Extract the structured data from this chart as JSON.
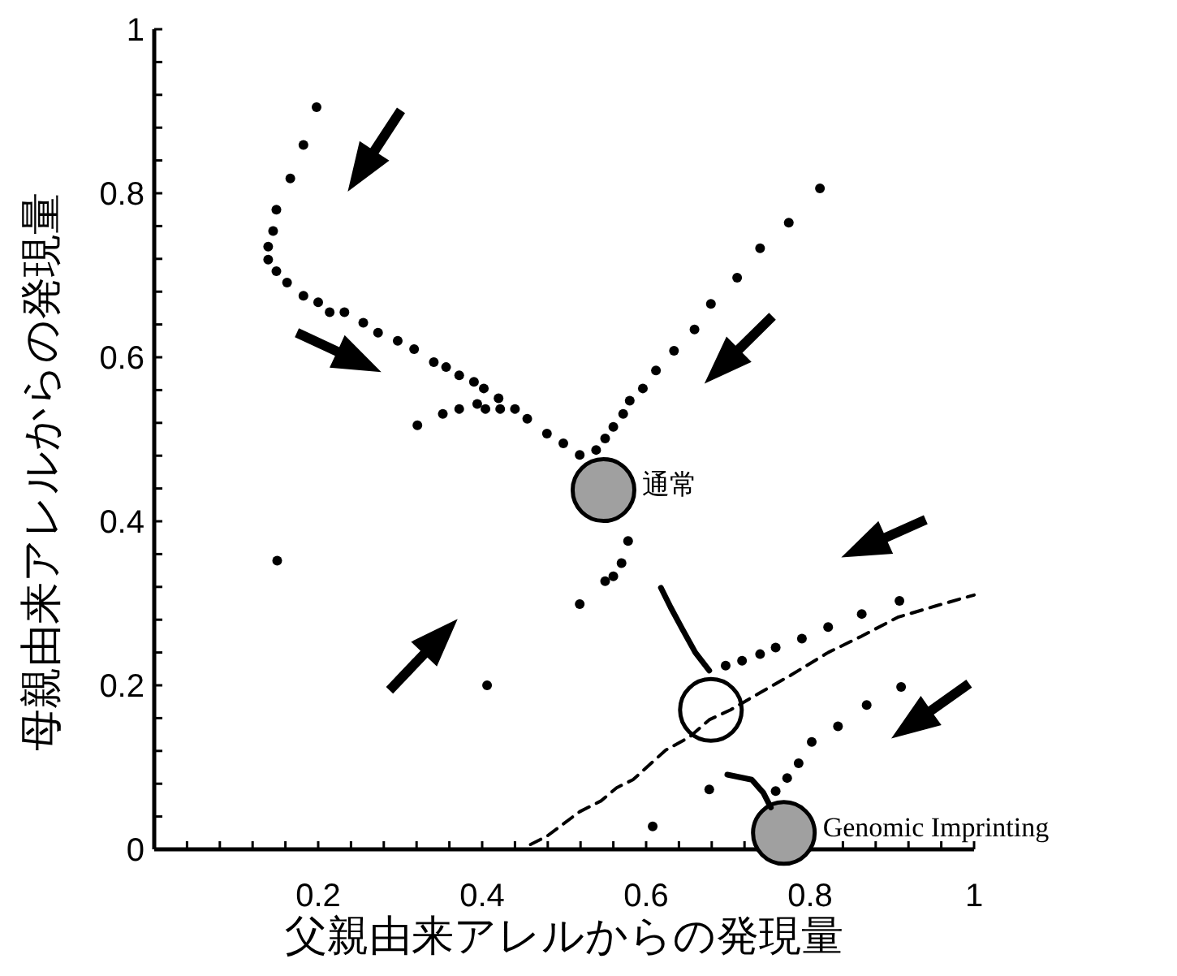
{
  "chart_data": {
    "type": "scatter",
    "xlabel": "父親由来アレルからの発現量",
    "ylabel": "母親由来アレルからの発現量",
    "xlim": [
      0,
      1
    ],
    "ylim": [
      0,
      1
    ],
    "xticks": [
      {
        "value": 0.04,
        "label": null
      },
      {
        "value": 0.08,
        "label": null
      },
      {
        "value": 0.12,
        "label": null
      },
      {
        "value": 0.16,
        "label": null
      },
      0.2,
      {
        "value": 0.24,
        "label": null
      },
      {
        "value": 0.28,
        "label": null
      },
      {
        "value": 0.32,
        "label": null
      },
      {
        "value": 0.36,
        "label": null
      },
      0.4,
      {
        "value": 0.44,
        "label": null
      },
      {
        "value": 0.48,
        "label": null
      },
      {
        "value": 0.52,
        "label": null
      },
      {
        "value": 0.56,
        "label": null
      },
      0.6,
      {
        "value": 0.64,
        "label": null
      },
      {
        "value": 0.68,
        "label": null
      },
      {
        "value": 0.72,
        "label": null
      },
      {
        "value": 0.76,
        "label": null
      },
      0.8,
      {
        "value": 0.84,
        "label": null
      },
      {
        "value": 0.88,
        "label": null
      },
      {
        "value": 0.92,
        "label": null
      },
      {
        "value": 0.96,
        "label": null
      },
      1
    ],
    "yticks": [
      0,
      {
        "value": 0.04,
        "label": null
      },
      {
        "value": 0.08,
        "label": null
      },
      {
        "value": 0.12,
        "label": null
      },
      {
        "value": 0.16,
        "label": null
      },
      0.2,
      {
        "value": 0.24,
        "label": null
      },
      {
        "value": 0.28,
        "label": null
      },
      {
        "value": 0.32,
        "label": null
      },
      {
        "value": 0.36,
        "label": null
      },
      0.4,
      {
        "value": 0.44,
        "label": null
      },
      {
        "value": 0.48,
        "label": null
      },
      {
        "value": 0.52,
        "label": null
      },
      {
        "value": 0.56,
        "label": null
      },
      0.6,
      {
        "value": 0.64,
        "label": null
      },
      {
        "value": 0.68,
        "label": null
      },
      {
        "value": 0.72,
        "label": null
      },
      {
        "value": 0.76,
        "label": null
      },
      0.8,
      {
        "value": 0.84,
        "label": null
      },
      {
        "value": 0.88,
        "label": null
      },
      {
        "value": 0.92,
        "label": null
      },
      {
        "value": 0.96,
        "label": null
      },
      1
    ],
    "grid": false,
    "annotations": [
      {
        "text": "通常",
        "x": 0.548,
        "y": 0.438
      },
      {
        "text": "Genomic Imprinting",
        "x": 0.768,
        "y": 0.02
      }
    ],
    "series": [
      {
        "type": "scatter",
        "marker": "circle",
        "color": "#000000",
        "x": [
          0.198,
          0.182,
          0.166,
          0.149,
          0.145,
          0.139,
          0.139,
          0.149,
          0.162,
          0.182,
          0.2,
          0.214,
          0.232,
          0.255,
          0.273,
          0.297,
          0.317,
          0.341,
          0.356,
          0.372,
          0.39,
          0.402,
          0.42,
          0.44,
          0.455,
          0.479,
          0.499,
          0.519
        ],
        "values": [
          0.905,
          0.859,
          0.818,
          0.78,
          0.754,
          0.735,
          0.719,
          0.705,
          0.691,
          0.675,
          0.667,
          0.655,
          0.655,
          0.642,
          0.63,
          0.62,
          0.61,
          0.594,
          0.588,
          0.578,
          0.57,
          0.562,
          0.55,
          0.537,
          0.525,
          0.507,
          0.495,
          0.481
        ]
      },
      {
        "type": "scatter",
        "marker": "circle",
        "color": "#000000",
        "x": [
          0.812,
          0.774,
          0.739,
          0.711,
          0.679,
          0.659,
          0.634,
          0.612,
          0.596,
          0.58,
          0.572,
          0.56,
          0.55,
          0.539
        ],
        "values": [
          0.806,
          0.764,
          0.733,
          0.697,
          0.665,
          0.634,
          0.608,
          0.584,
          0.562,
          0.547,
          0.531,
          0.515,
          0.501,
          0.487
        ]
      },
      {
        "type": "scatter",
        "marker": "circle",
        "color": "#000000",
        "x": [
          0.321,
          0.352,
          0.372,
          0.394,
          0.404,
          0.422
        ],
        "values": [
          0.517,
          0.531,
          0.537,
          0.543,
          0.537,
          0.537
        ]
      },
      {
        "type": "scatter",
        "marker": "circle",
        "color": "#000000",
        "x": [
          0.578,
          0.57,
          0.56,
          0.55,
          0.519
        ],
        "values": [
          0.376,
          0.349,
          0.333,
          0.327,
          0.299
        ]
      },
      {
        "type": "scatter",
        "marker": "circle",
        "color": "#000000",
        "x": [
          0.697,
          0.717,
          0.739,
          0.758,
          0.79,
          0.822,
          0.863,
          0.909
        ],
        "values": [
          0.224,
          0.23,
          0.238,
          0.246,
          0.257,
          0.271,
          0.287,
          0.303
        ]
      },
      {
        "type": "scatter",
        "marker": "circle",
        "color": "#000000",
        "x": [
          0.911,
          0.869,
          0.834,
          0.802,
          0.786,
          0.772,
          0.758
        ],
        "values": [
          0.198,
          0.176,
          0.15,
          0.131,
          0.105,
          0.087,
          0.071
        ]
      },
      {
        "type": "scatter",
        "marker": "circle",
        "color": "#000000",
        "x": [
          0.15,
          0.406,
          0.677,
          0.608
        ],
        "values": [
          0.352,
          0.2,
          0.073,
          0.028
        ]
      },
      {
        "type": "line",
        "line_style": "solid",
        "color": "#000000",
        "x": [
          0.618,
          0.63,
          0.644,
          0.66,
          0.677
        ],
        "values": [
          0.319,
          0.295,
          0.269,
          0.24,
          0.218
        ]
      },
      {
        "type": "line",
        "line_style": "solid",
        "color": "#000000",
        "x": [
          0.699,
          0.729,
          0.743,
          0.752
        ],
        "values": [
          0.091,
          0.085,
          0.069,
          0.051
        ]
      },
      {
        "type": "line",
        "line_style": "dashed",
        "color": "#000000",
        "x": [
          0.459,
          0.479,
          0.519,
          0.545,
          0.564,
          0.584,
          0.624,
          0.653,
          0.677,
          0.703,
          0.737,
          0.776,
          0.822,
          0.861,
          0.907,
          0.954,
          1.0
        ],
        "values": [
          0.006,
          0.016,
          0.046,
          0.059,
          0.075,
          0.085,
          0.121,
          0.137,
          0.158,
          0.17,
          0.19,
          0.212,
          0.24,
          0.259,
          0.283,
          0.297,
          0.31
        ]
      },
      {
        "type": "bubble",
        "x": [
          0.548,
          0.679,
          0.768
        ],
        "values": [
          0.438,
          0.17,
          0.02
        ],
        "sizes": [
          1,
          1,
          1
        ],
        "colors": [
          "#a0a0a0",
          "#ffffff",
          "#a0a0a0"
        ]
      }
    ]
  }
}
